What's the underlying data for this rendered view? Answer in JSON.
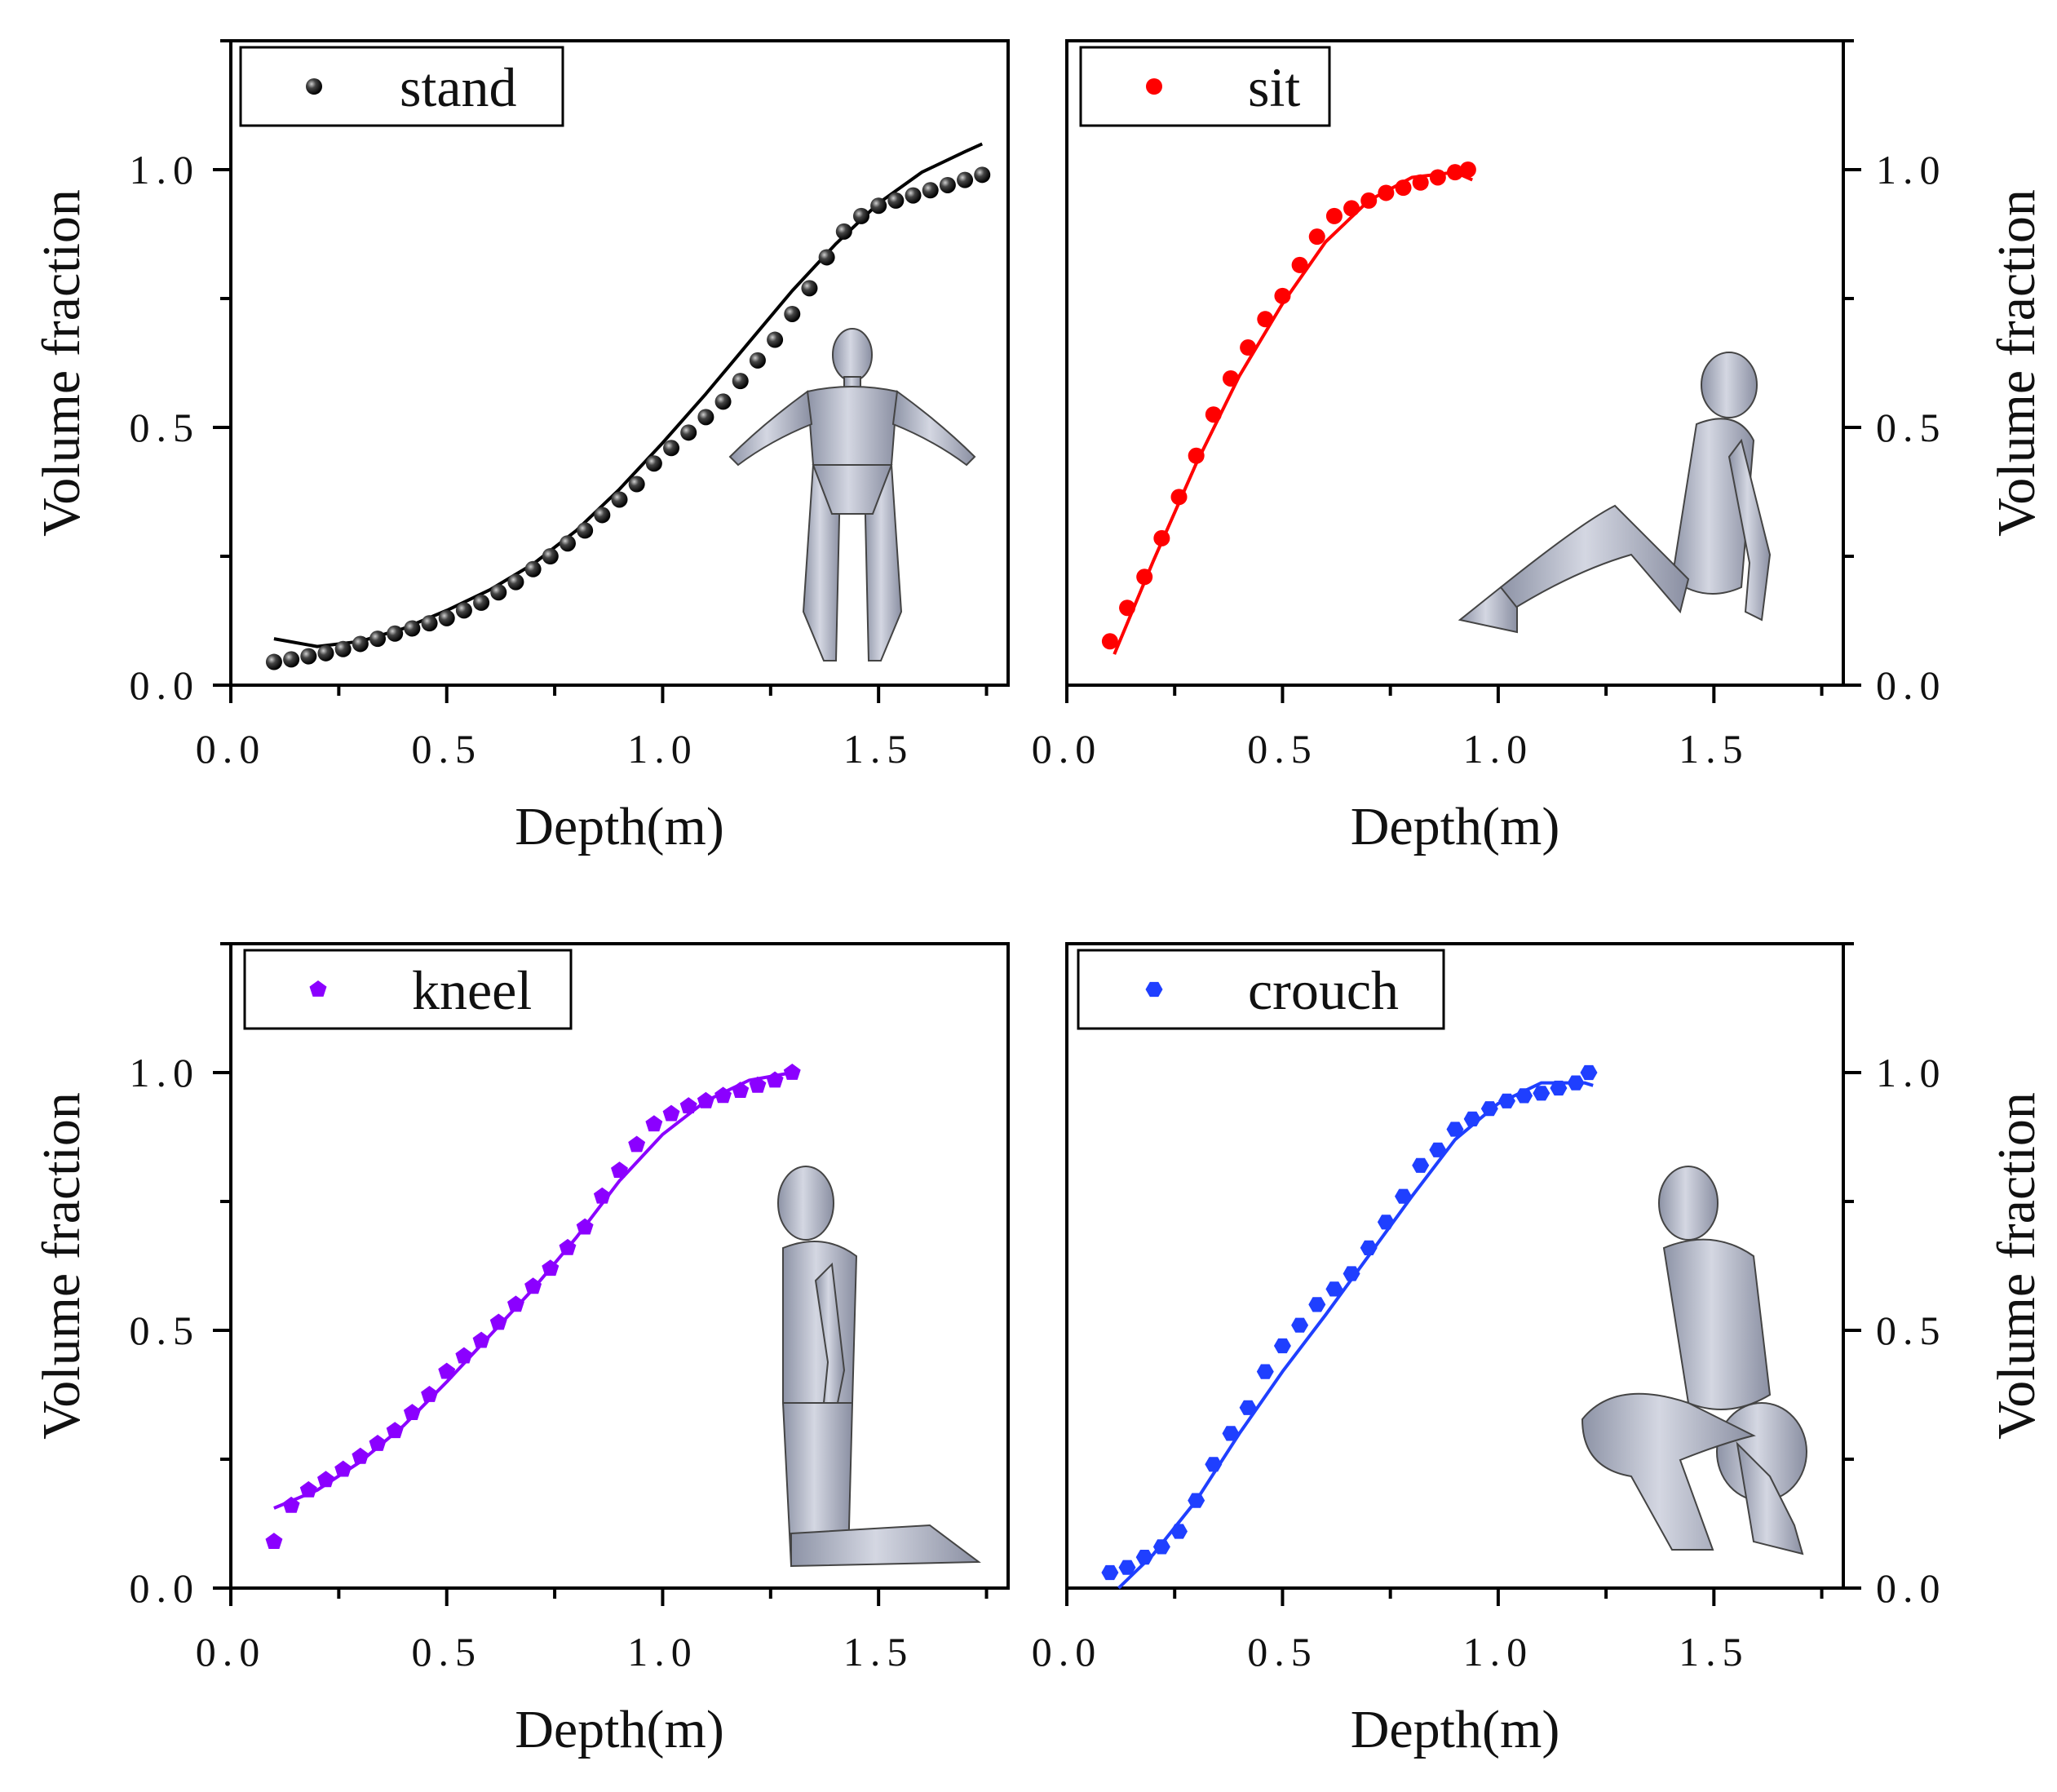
{
  "chart_data": [
    {
      "id": "stand",
      "type": "scatter",
      "xlabel": "Depth(m)",
      "ylabel": "Volume fraction",
      "xlim": [
        0.0,
        1.8
      ],
      "ylim": [
        0.0,
        1.25
      ],
      "x_ticks": [
        "0.0",
        "0.5",
        "1.0",
        "1.5"
      ],
      "y_ticks": [
        "0.0",
        "0.5",
        "1.0"
      ],
      "ylabel_side": "left",
      "legend_position": "top-left",
      "marker": "sphere",
      "color": "#000000",
      "series": [
        {
          "name": "stand",
          "points": [
            [
              0.1,
              0.045
            ],
            [
              0.14,
              0.05
            ],
            [
              0.18,
              0.056
            ],
            [
              0.22,
              0.062
            ],
            [
              0.26,
              0.07
            ],
            [
              0.3,
              0.08
            ],
            [
              0.34,
              0.09
            ],
            [
              0.38,
              0.1
            ],
            [
              0.42,
              0.11
            ],
            [
              0.46,
              0.12
            ],
            [
              0.5,
              0.13
            ],
            [
              0.54,
              0.145
            ],
            [
              0.58,
              0.16
            ],
            [
              0.62,
              0.18
            ],
            [
              0.66,
              0.2
            ],
            [
              0.7,
              0.225
            ],
            [
              0.74,
              0.25
            ],
            [
              0.78,
              0.275
            ],
            [
              0.82,
              0.3
            ],
            [
              0.86,
              0.33
            ],
            [
              0.9,
              0.36
            ],
            [
              0.94,
              0.39
            ],
            [
              0.98,
              0.43
            ],
            [
              1.02,
              0.46
            ],
            [
              1.06,
              0.49
            ],
            [
              1.1,
              0.52
            ],
            [
              1.14,
              0.55
            ],
            [
              1.18,
              0.59
            ],
            [
              1.22,
              0.63
            ],
            [
              1.26,
              0.67
            ],
            [
              1.3,
              0.72
            ],
            [
              1.34,
              0.77
            ],
            [
              1.38,
              0.83
            ],
            [
              1.42,
              0.88
            ],
            [
              1.46,
              0.91
            ],
            [
              1.5,
              0.93
            ],
            [
              1.54,
              0.94
            ],
            [
              1.58,
              0.95
            ],
            [
              1.62,
              0.96
            ],
            [
              1.66,
              0.97
            ],
            [
              1.7,
              0.98
            ],
            [
              1.74,
              0.99
            ]
          ],
          "fit": [
            [
              0.1,
              0.09
            ],
            [
              0.2,
              0.075
            ],
            [
              0.3,
              0.085
            ],
            [
              0.4,
              0.11
            ],
            [
              0.5,
              0.145
            ],
            [
              0.6,
              0.185
            ],
            [
              0.7,
              0.235
            ],
            [
              0.8,
              0.3
            ],
            [
              0.9,
              0.38
            ],
            [
              1.0,
              0.47
            ],
            [
              1.1,
              0.565
            ],
            [
              1.2,
              0.665
            ],
            [
              1.3,
              0.765
            ],
            [
              1.4,
              0.855
            ],
            [
              1.5,
              0.935
            ],
            [
              1.6,
              0.995
            ],
            [
              1.7,
              1.035
            ],
            [
              1.74,
              1.05
            ]
          ]
        }
      ]
    },
    {
      "id": "sit",
      "type": "scatter",
      "xlabel": "Depth(m)",
      "ylabel": "Volume fraction",
      "xlim": [
        0.0,
        1.8
      ],
      "ylim": [
        0.0,
        1.25
      ],
      "x_ticks": [
        "0.0",
        "0.5",
        "1.0",
        "1.5"
      ],
      "y_ticks": [
        "0.0",
        "0.5",
        "1.0"
      ],
      "ylabel_side": "right",
      "legend_position": "top-left",
      "marker": "circle",
      "color": "#ff0000",
      "series": [
        {
          "name": "sit",
          "points": [
            [
              0.1,
              0.085
            ],
            [
              0.14,
              0.15
            ],
            [
              0.18,
              0.21
            ],
            [
              0.22,
              0.285
            ],
            [
              0.26,
              0.365
            ],
            [
              0.3,
              0.445
            ],
            [
              0.34,
              0.525
            ],
            [
              0.38,
              0.595
            ],
            [
              0.42,
              0.655
            ],
            [
              0.46,
              0.71
            ],
            [
              0.5,
              0.755
            ],
            [
              0.54,
              0.815
            ],
            [
              0.58,
              0.87
            ],
            [
              0.62,
              0.91
            ],
            [
              0.66,
              0.925
            ],
            [
              0.7,
              0.94
            ],
            [
              0.74,
              0.955
            ],
            [
              0.78,
              0.965
            ],
            [
              0.82,
              0.975
            ],
            [
              0.86,
              0.985
            ],
            [
              0.9,
              0.995
            ],
            [
              0.93,
              1.0
            ]
          ],
          "fit": [
            [
              0.11,
              0.06
            ],
            [
              0.2,
              0.24
            ],
            [
              0.3,
              0.43
            ],
            [
              0.4,
              0.6
            ],
            [
              0.5,
              0.74
            ],
            [
              0.6,
              0.86
            ],
            [
              0.7,
              0.94
            ],
            [
              0.8,
              0.985
            ],
            [
              0.9,
              0.995
            ],
            [
              0.94,
              0.98
            ]
          ]
        }
      ]
    },
    {
      "id": "kneel",
      "type": "scatter",
      "xlabel": "Depth(m)",
      "ylabel": "Volume fraction",
      "xlim": [
        0.0,
        1.8
      ],
      "ylim": [
        0.0,
        1.25
      ],
      "x_ticks": [
        "0.0",
        "0.5",
        "1.0",
        "1.5"
      ],
      "y_ticks": [
        "0.0",
        "0.5",
        "1.0"
      ],
      "ylabel_side": "left",
      "legend_position": "top-left",
      "marker": "pentagon",
      "color": "#8b00ff",
      "series": [
        {
          "name": "kneel",
          "points": [
            [
              0.1,
              0.09
            ],
            [
              0.14,
              0.16
            ],
            [
              0.18,
              0.19
            ],
            [
              0.22,
              0.21
            ],
            [
              0.26,
              0.23
            ],
            [
              0.3,
              0.255
            ],
            [
              0.34,
              0.28
            ],
            [
              0.38,
              0.305
            ],
            [
              0.42,
              0.34
            ],
            [
              0.46,
              0.375
            ],
            [
              0.5,
              0.42
            ],
            [
              0.54,
              0.45
            ],
            [
              0.58,
              0.48
            ],
            [
              0.62,
              0.515
            ],
            [
              0.66,
              0.55
            ],
            [
              0.7,
              0.585
            ],
            [
              0.74,
              0.62
            ],
            [
              0.78,
              0.66
            ],
            [
              0.82,
              0.7
            ],
            [
              0.86,
              0.76
            ],
            [
              0.9,
              0.81
            ],
            [
              0.94,
              0.86
            ],
            [
              0.98,
              0.9
            ],
            [
              1.02,
              0.92
            ],
            [
              1.06,
              0.935
            ],
            [
              1.1,
              0.945
            ],
            [
              1.14,
              0.955
            ],
            [
              1.18,
              0.965
            ],
            [
              1.22,
              0.975
            ],
            [
              1.26,
              0.985
            ],
            [
              1.3,
              1.0
            ]
          ],
          "fit": [
            [
              0.1,
              0.155
            ],
            [
              0.2,
              0.19
            ],
            [
              0.3,
              0.245
            ],
            [
              0.4,
              0.315
            ],
            [
              0.5,
              0.4
            ],
            [
              0.6,
              0.49
            ],
            [
              0.7,
              0.58
            ],
            [
              0.8,
              0.68
            ],
            [
              0.9,
              0.79
            ],
            [
              1.0,
              0.88
            ],
            [
              1.1,
              0.945
            ],
            [
              1.2,
              0.985
            ],
            [
              1.3,
              1.0
            ]
          ]
        }
      ]
    },
    {
      "id": "crouch",
      "type": "scatter",
      "xlabel": "Depth(m)",
      "ylabel": "Volume fraction",
      "xlim": [
        0.0,
        1.8
      ],
      "ylim": [
        0.0,
        1.25
      ],
      "x_ticks": [
        "0.0",
        "0.5",
        "1.0",
        "1.5"
      ],
      "y_ticks": [
        "0.0",
        "0.5",
        "1.0"
      ],
      "ylabel_side": "right",
      "legend_position": "top-left",
      "marker": "hexagon",
      "color": "#1f3fff",
      "series": [
        {
          "name": "crouch",
          "points": [
            [
              0.1,
              0.03
            ],
            [
              0.14,
              0.04
            ],
            [
              0.18,
              0.06
            ],
            [
              0.22,
              0.08
            ],
            [
              0.26,
              0.11
            ],
            [
              0.3,
              0.17
            ],
            [
              0.34,
              0.24
            ],
            [
              0.38,
              0.3
            ],
            [
              0.42,
              0.35
            ],
            [
              0.46,
              0.42
            ],
            [
              0.5,
              0.47
            ],
            [
              0.54,
              0.51
            ],
            [
              0.58,
              0.55
            ],
            [
              0.62,
              0.58
            ],
            [
              0.66,
              0.61
            ],
            [
              0.7,
              0.66
            ],
            [
              0.74,
              0.71
            ],
            [
              0.78,
              0.76
            ],
            [
              0.82,
              0.82
            ],
            [
              0.86,
              0.85
            ],
            [
              0.9,
              0.89
            ],
            [
              0.94,
              0.91
            ],
            [
              0.98,
              0.93
            ],
            [
              1.02,
              0.945
            ],
            [
              1.06,
              0.955
            ],
            [
              1.1,
              0.96
            ],
            [
              1.14,
              0.97
            ],
            [
              1.18,
              0.98
            ],
            [
              1.21,
              1.0
            ]
          ],
          "fit": [
            [
              0.12,
              0.0
            ],
            [
              0.2,
              0.065
            ],
            [
              0.3,
              0.17
            ],
            [
              0.4,
              0.3
            ],
            [
              0.5,
              0.42
            ],
            [
              0.6,
              0.53
            ],
            [
              0.7,
              0.645
            ],
            [
              0.8,
              0.76
            ],
            [
              0.9,
              0.87
            ],
            [
              1.0,
              0.94
            ],
            [
              1.1,
              0.98
            ],
            [
              1.2,
              0.98
            ],
            [
              1.22,
              0.975
            ]
          ]
        }
      ]
    }
  ]
}
